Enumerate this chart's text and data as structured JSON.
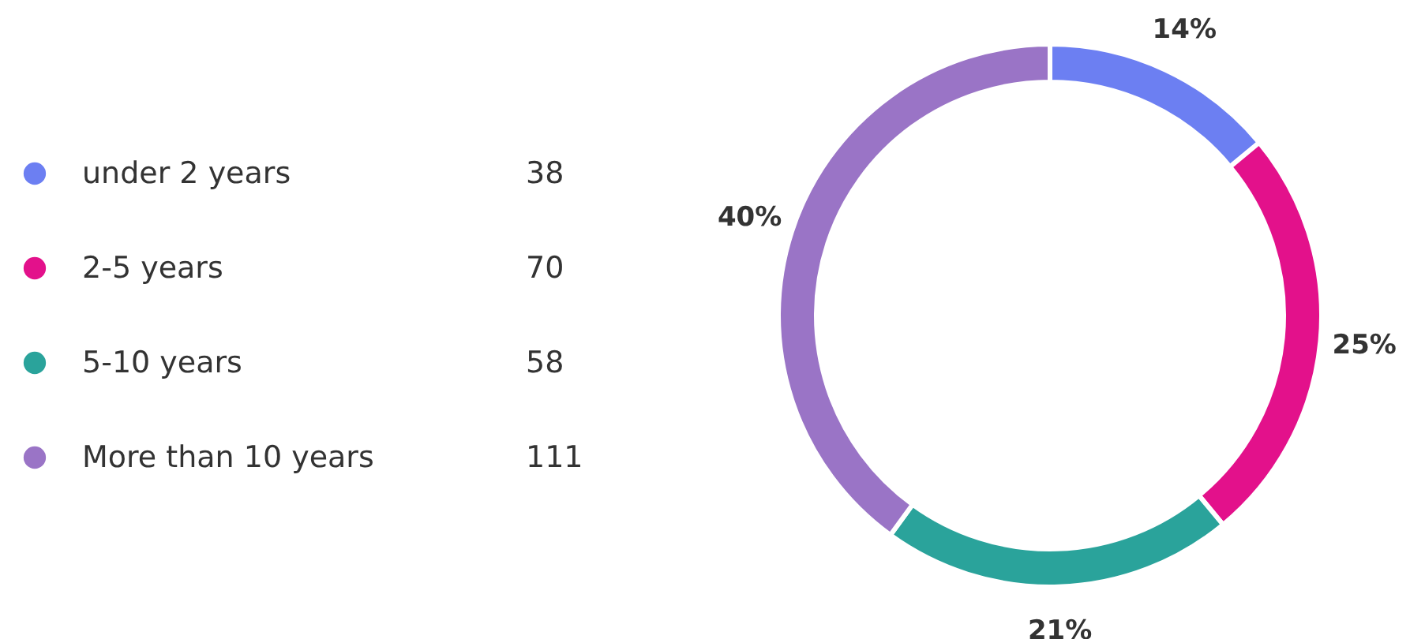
{
  "chart_data": {
    "type": "donut",
    "categories": [
      "under 2 years",
      "2-5 years",
      "5-10 years",
      "More than 10 years"
    ],
    "values": [
      14,
      25,
      21,
      40
    ],
    "annotations": [
      "38",
      "70",
      "58",
      "111"
    ],
    "colors": [
      "#6c7ff2",
      "#e3118b",
      "#2aa39b",
      "#9a74c6"
    ],
    "value_labels": [
      "14%",
      "25%",
      "21%",
      "40%"
    ],
    "legend": "left"
  }
}
